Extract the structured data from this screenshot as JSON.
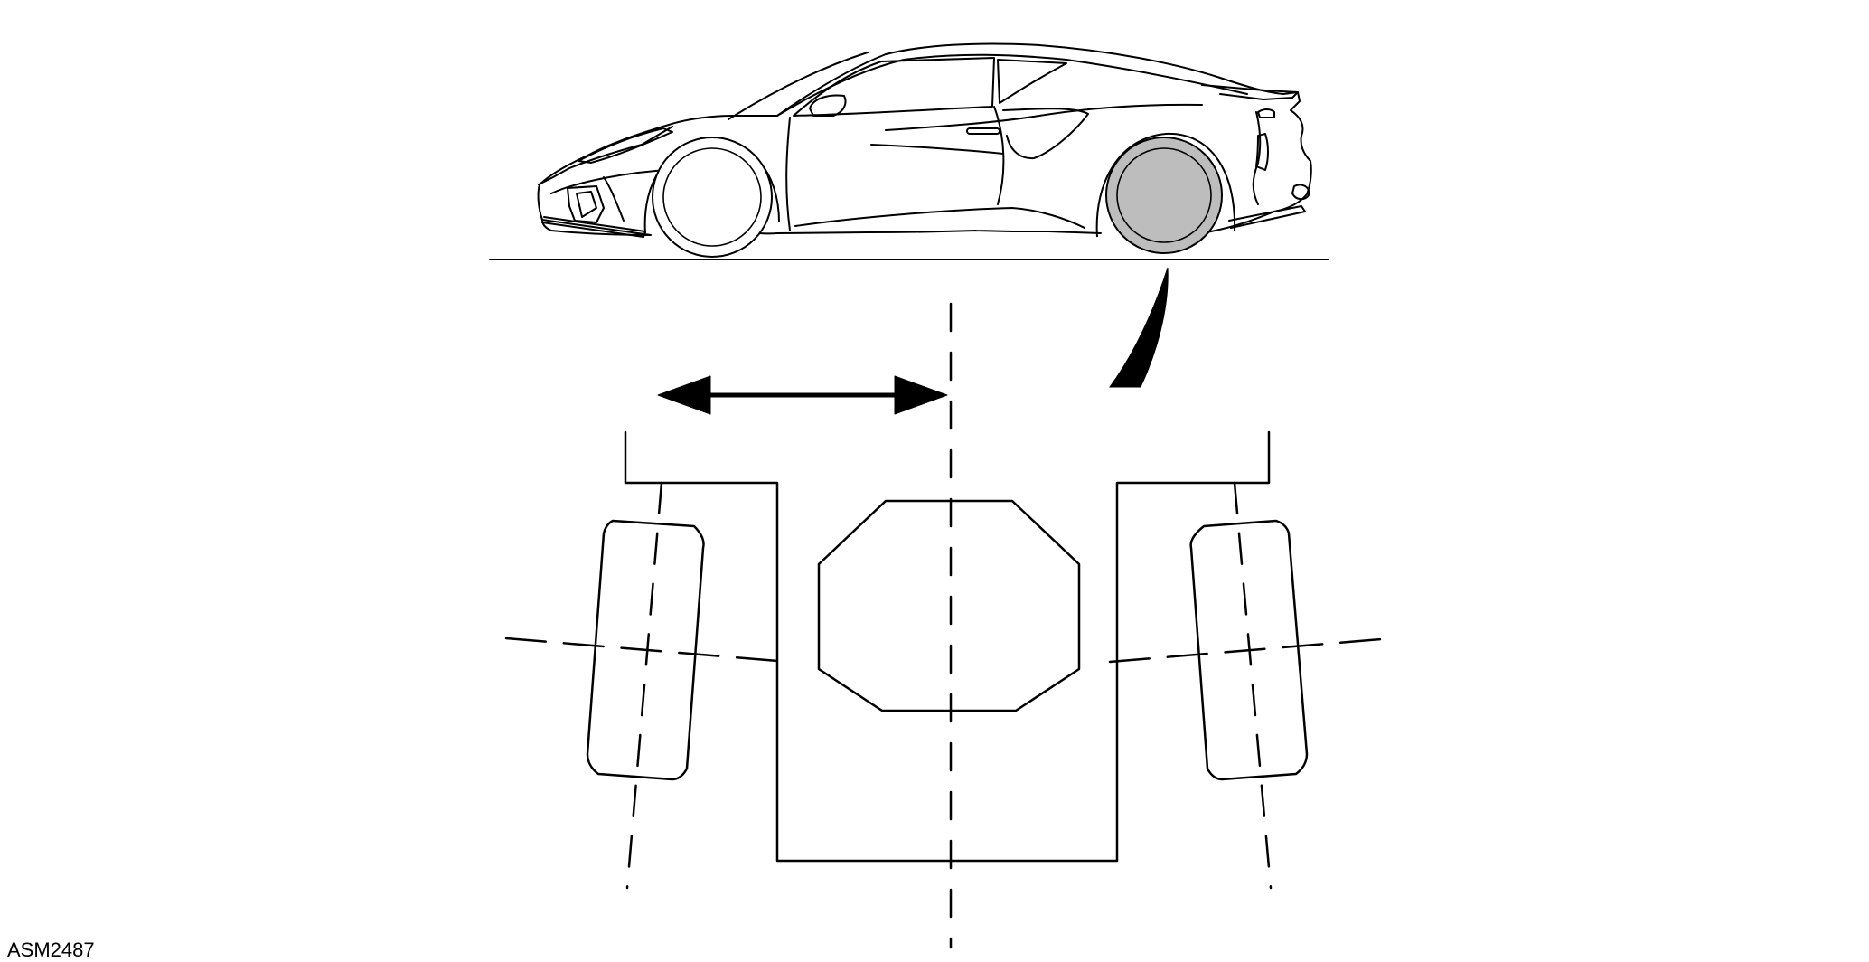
{
  "figure": {
    "id_label": "ASM2487"
  },
  "colors": {
    "stroke": "#000000",
    "highlighted_wheel_fill": "#bdbdbd",
    "background": "#ffffff"
  },
  "icons": {
    "callout": "wedge-pointer",
    "direction_arrow": "double-headed-arrow"
  }
}
